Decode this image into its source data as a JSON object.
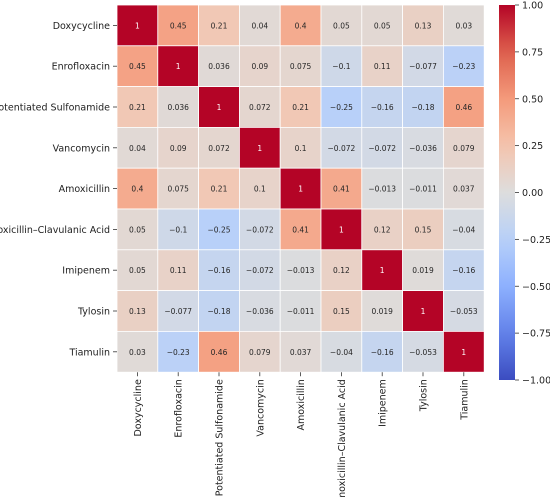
{
  "chart_data": {
    "type": "heatmap",
    "title": "",
    "xlabel": "",
    "ylabel": "",
    "colormap": "coolwarm",
    "vmin": -1.0,
    "vmax": 1.0,
    "grid": true,
    "legend": "colorbar-right",
    "rows": [
      "Doxycycline",
      "Enrofloxacin",
      "Potentiated Sulfonamide",
      "Vancomycin",
      "Amoxicillin",
      "Amoxicillin–Clavulanic Acid",
      "Imipenem",
      "Tylosin",
      "Tiamulin"
    ],
    "columns": [
      "Doxycycline",
      "Enrofloxacin",
      "Potentiated Sulfonamide",
      "Vancomycin",
      "Amoxicillin",
      "Amoxicillin–Clavulanic Acid",
      "Imipenem",
      "Tylosin",
      "Tiamulin"
    ],
    "values": [
      [
        1,
        0.45,
        0.21,
        0.04,
        0.4,
        0.05,
        0.05,
        0.13,
        0.03
      ],
      [
        0.45,
        1,
        0.036,
        0.09,
        0.075,
        -0.1,
        0.11,
        -0.077,
        -0.23
      ],
      [
        0.21,
        0.036,
        1,
        0.072,
        0.21,
        -0.25,
        -0.16,
        -0.18,
        0.46
      ],
      [
        0.04,
        0.09,
        0.072,
        1,
        0.1,
        -0.072,
        -0.072,
        -0.036,
        0.079
      ],
      [
        0.4,
        0.075,
        0.21,
        0.1,
        1,
        0.41,
        -0.013,
        -0.011,
        0.037
      ],
      [
        0.05,
        -0.1,
        -0.25,
        -0.072,
        0.41,
        1,
        0.12,
        0.15,
        -0.04
      ],
      [
        0.05,
        0.11,
        -0.16,
        -0.072,
        -0.013,
        0.12,
        1,
        0.019,
        -0.16
      ],
      [
        0.13,
        -0.077,
        -0.18,
        -0.036,
        -0.011,
        0.15,
        0.019,
        1,
        -0.053
      ],
      [
        0.03,
        -0.23,
        0.46,
        0.079,
        0.037,
        -0.04,
        -0.16,
        -0.053,
        1
      ]
    ],
    "labels": [
      [
        "1",
        "0.45",
        "0.21",
        "0.04",
        "0.4",
        "0.05",
        "0.05",
        "0.13",
        "0.03"
      ],
      [
        "0.45",
        "1",
        "0.036",
        "0.09",
        "0.075",
        "−0.1",
        "0.11",
        "−0.077",
        "−0.23"
      ],
      [
        "0.21",
        "0.036",
        "1",
        "0.072",
        "0.21",
        "−0.25",
        "−0.16",
        "−0.18",
        "0.46"
      ],
      [
        "0.04",
        "0.09",
        "0.072",
        "1",
        "0.1",
        "−0.072",
        "−0.072",
        "−0.036",
        "0.079"
      ],
      [
        "0.4",
        "0.075",
        "0.21",
        "0.1",
        "1",
        "0.41",
        "−0.013",
        "−0.011",
        "0.037"
      ],
      [
        "0.05",
        "−0.1",
        "−0.25",
        "−0.072",
        "0.41",
        "1",
        "0.12",
        "0.15",
        "−0.04"
      ],
      [
        "0.05",
        "0.11",
        "−0.16",
        "−0.072",
        "−0.013",
        "0.12",
        "1",
        "0.019",
        "−0.16"
      ],
      [
        "0.13",
        "−0.077",
        "−0.18",
        "−0.036",
        "−0.011",
        "0.15",
        "0.019",
        "1",
        "−0.053"
      ],
      [
        "0.03",
        "−0.23",
        "0.46",
        "0.079",
        "0.037",
        "−0.04",
        "−0.16",
        "−0.053",
        "1"
      ]
    ],
    "colorbar": {
      "ticks": [
        1.0,
        0.75,
        0.5,
        0.25,
        0.0,
        -0.25,
        -0.5,
        -0.75,
        -1.0
      ],
      "tick_labels": [
        "1.00",
        "0.75",
        "0.50",
        "0.25",
        "0.00",
        "−0.25",
        "−0.50",
        "−0.75",
        "−1.00"
      ]
    }
  }
}
